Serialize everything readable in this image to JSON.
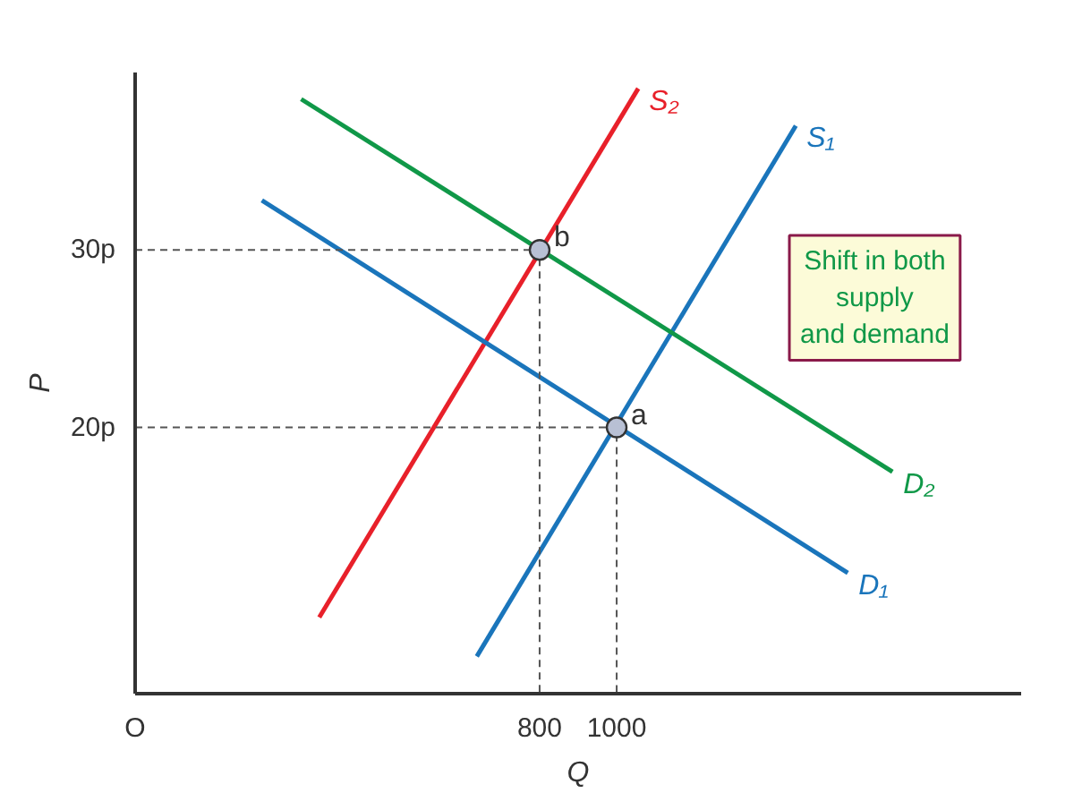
{
  "chart_data": {
    "type": "line",
    "xlabel": "Q",
    "ylabel": "P",
    "xlim": [
      -250,
      2050
    ],
    "ylim": [
      5,
      40
    ],
    "xticks": [
      {
        "value": 800,
        "label": "800"
      },
      {
        "value": 1000,
        "label": "1000"
      }
    ],
    "yticks": [
      {
        "value": 20,
        "label": "20p"
      },
      {
        "value": 30,
        "label": "30p"
      }
    ],
    "series": [
      {
        "name": "S₁",
        "color": "#1a75bb",
        "x": [
          637,
          1465
        ],
        "values": [
          7.1,
          37
        ]
      },
      {
        "name": "S₂",
        "color": "#e8202a",
        "x": [
          228,
          1056
        ],
        "values": [
          9.3,
          39.1
        ]
      },
      {
        "name": "D₁",
        "color": "#1a75bb",
        "x": [
          79,
          1600
        ],
        "values": [
          32.8,
          11.8
        ]
      },
      {
        "name": "D₂",
        "color": "#109848",
        "x": [
          181,
          1716
        ],
        "values": [
          38.5,
          17.5
        ]
      },
      {
        "type": "line",
        "line_style": "dashed",
        "color": "#555555",
        "x": [
          -250,
          800,
          800
        ],
        "values": [
          30,
          30,
          5
        ]
      },
      {
        "type": "line",
        "line_style": "dashed",
        "color": "#555555",
        "x": [
          -250,
          1000,
          1000
        ],
        "values": [
          20,
          20,
          5
        ]
      },
      {
        "type": "scatter",
        "marker": "circle",
        "color": "#b8c0d4",
        "x": [
          1000,
          800
        ],
        "values": [
          20,
          30
        ]
      }
    ],
    "annotations": [
      {
        "text": "a",
        "x": 1000,
        "y": 20
      },
      {
        "text": "b",
        "x": 800,
        "y": 30
      },
      "Shift in both\nsupply\nand demand",
      "O"
    ]
  }
}
